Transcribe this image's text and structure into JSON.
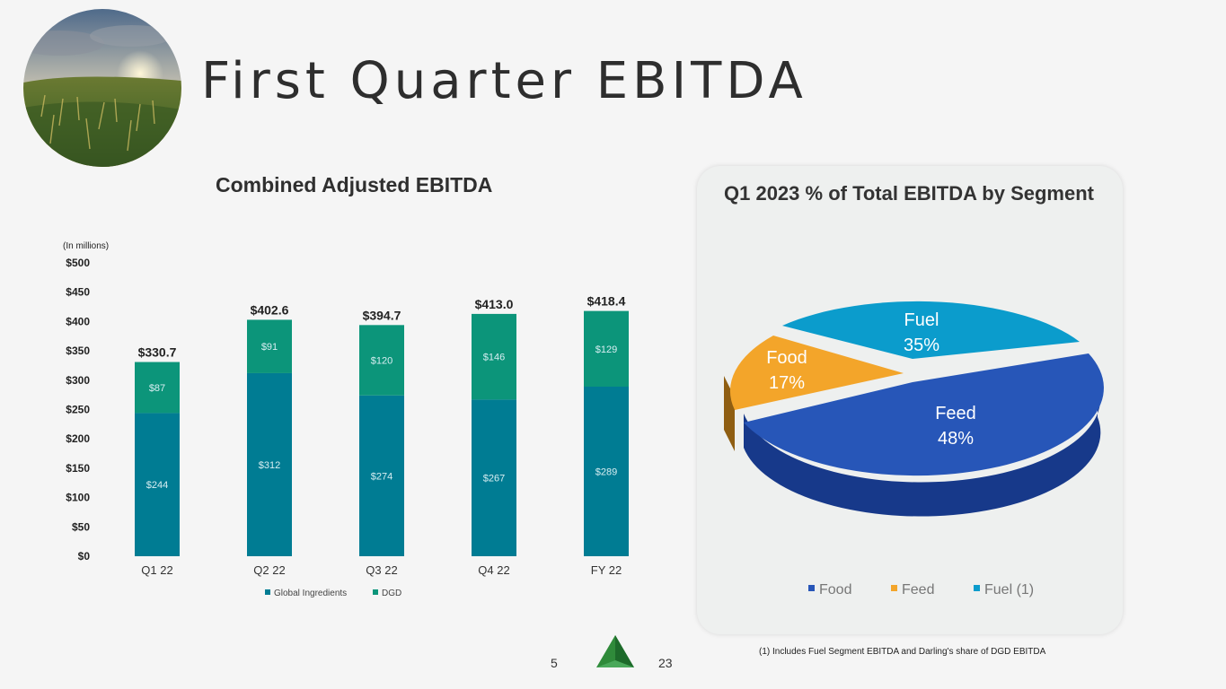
{
  "header": {
    "title": "First Quarter EBITDA"
  },
  "bar_chart_title": "Combined Adjusted EBITDA",
  "pie_chart_title": "Q1 2023 % of Total EBITDA by Segment",
  "footnote": "(1) Includes Fuel Segment EBITDA and Darling's share of DGD EBITDA",
  "page": {
    "number": "5",
    "total": "23"
  },
  "colors": {
    "global_ingredients": "#007c93",
    "dgd": "#0c957a",
    "feed": "#2756b8",
    "food": "#f3a52a",
    "fuel": "#0b9ccc"
  },
  "chart_data": [
    {
      "type": "bar",
      "stacked": true,
      "title": "Combined Adjusted EBITDA",
      "units_note": "(In millions)",
      "categories": [
        "Q1 22",
        "Q2 22",
        "Q3 22",
        "Q4 22",
        "FY 22"
      ],
      "series": [
        {
          "name": "Global Ingredients",
          "values": [
            244,
            312,
            274,
            267,
            289
          ],
          "labels": [
            "$244",
            "$312",
            "$274",
            "$267",
            "$289"
          ]
        },
        {
          "name": "DGD",
          "values": [
            87,
            91,
            120,
            146,
            129
          ],
          "labels": [
            "$87",
            "$91",
            "$120",
            "$146",
            "$129"
          ]
        }
      ],
      "totals": [
        "$330.7",
        "$402.6",
        "$394.7",
        "$413.0",
        "$418.4"
      ],
      "ylim": [
        0,
        500
      ],
      "yticks": [
        0,
        50,
        100,
        150,
        200,
        250,
        300,
        350,
        400,
        450,
        500
      ],
      "ytick_labels": [
        "$0",
        "$50",
        "$100",
        "$150",
        "$200",
        "$250",
        "$300",
        "$350",
        "$400",
        "$450",
        "$500"
      ],
      "legend": [
        "Global Ingredients",
        "DGD"
      ],
      "legend_position": "bottom"
    },
    {
      "type": "pie",
      "title": "Q1 2023 % of Total EBITDA by Segment",
      "slices": [
        {
          "name": "Feed",
          "value": 48,
          "label": "48%"
        },
        {
          "name": "Food",
          "value": 17,
          "label": "17%"
        },
        {
          "name": "Fuel",
          "value": 35,
          "label": "35%"
        }
      ],
      "legend": [
        "Food",
        "Feed",
        "Fuel (1)"
      ],
      "legend_position": "bottom"
    }
  ]
}
